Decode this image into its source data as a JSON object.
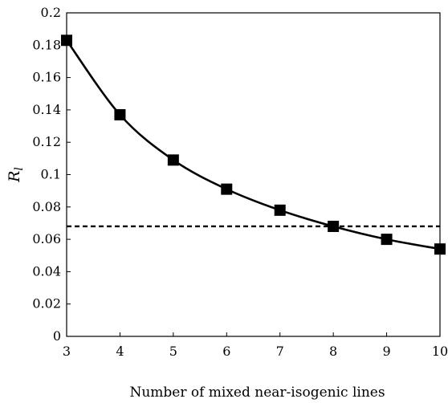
{
  "chart_data": {
    "type": "line",
    "title": "",
    "xlabel": "Number of mixed near-isogenic lines",
    "ylabel_main": "R",
    "ylabel_sub": "l",
    "xlim": [
      3,
      10
    ],
    "ylim": [
      0,
      0.2
    ],
    "x_ticks": [
      "3",
      "4",
      "5",
      "6",
      "7",
      "8",
      "9",
      "10"
    ],
    "y_ticks": [
      "0",
      "0.02",
      "0.04",
      "0.06",
      "0.08",
      "0.1",
      "0.12",
      "0.14",
      "0.16",
      "0.18",
      "0.2"
    ],
    "grid": false,
    "legend": "none",
    "series": [
      {
        "x": [
          3,
          4,
          5,
          6,
          7,
          8,
          9,
          10
        ],
        "values": [
          0.183,
          0.137,
          0.109,
          0.091,
          0.078,
          0.068,
          0.06,
          0.054
        ],
        "marker": "square",
        "color": "#000000"
      }
    ],
    "reference_line": {
      "y": 0.068,
      "style": "dashed",
      "color": "#000000"
    }
  }
}
